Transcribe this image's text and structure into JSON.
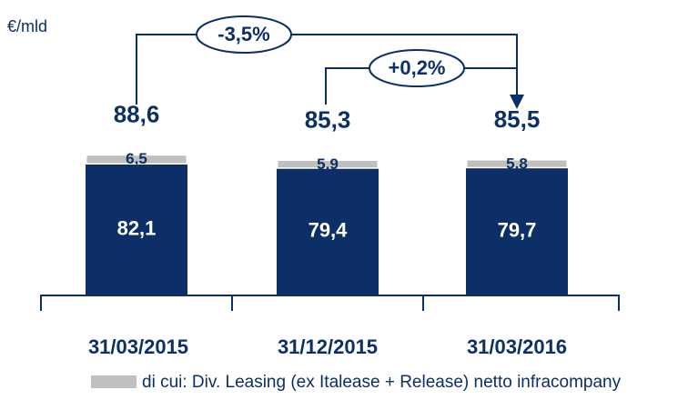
{
  "chart_data": {
    "type": "stacked-bar",
    "unit": "€/mld",
    "categories": [
      "31/03/2015",
      "31/12/2015",
      "31/03/2016"
    ],
    "series": [
      {
        "color": "#0b2f66",
        "values": [
          82.1,
          79.4,
          79.7
        ],
        "value_labels": [
          "82,1",
          "79,4",
          "79,7"
        ]
      },
      {
        "name": "di cui: Div. Leasing (ex Italease + Release) netto infracompany",
        "color": "#bfbfbf",
        "values": [
          6.5,
          5.9,
          5.8
        ],
        "value_labels": [
          "6,5",
          "5,9",
          "5,8"
        ]
      }
    ],
    "totals": [
      88.6,
      85.3,
      85.5
    ],
    "total_labels": [
      "88,6",
      "85,3",
      "85,5"
    ],
    "annotations": [
      "-3,5%",
      "+0,2%"
    ]
  }
}
